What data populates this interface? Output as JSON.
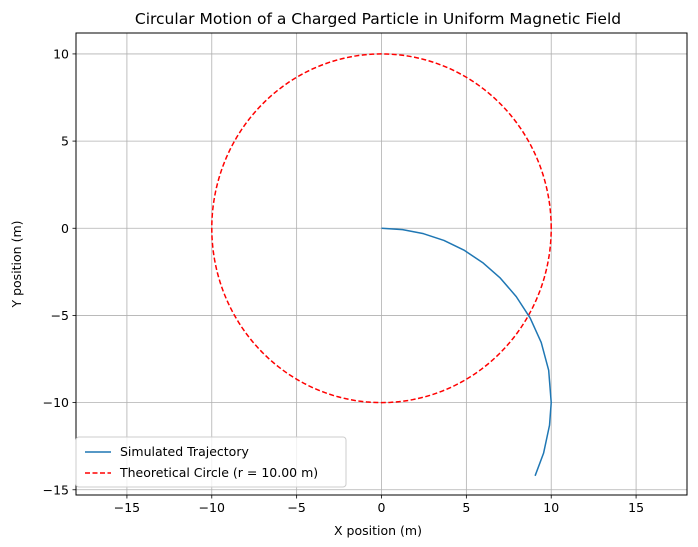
{
  "chart_data": {
    "type": "line",
    "title": "Circular Motion of a Charged Particle in Uniform Magnetic Field",
    "xlabel": "X position (m)",
    "ylabel": "Y position (m)",
    "xlim": [
      -18,
      18
    ],
    "ylim": [
      -15.3,
      11.2
    ],
    "xticks": [
      -15,
      -10,
      -5,
      0,
      5,
      10,
      15
    ],
    "yticks": [
      -15,
      -10,
      -5,
      0,
      5,
      10
    ],
    "xtick_labels": [
      "−15",
      "−10",
      "−5",
      "0",
      "5",
      "10",
      "15"
    ],
    "ytick_labels": [
      "−15",
      "−10",
      "−5",
      "0",
      "5",
      "10"
    ],
    "grid": true,
    "legend_position": "lower-left",
    "series": [
      {
        "name": "Simulated Trajectory",
        "style": "solid",
        "color": "#1f77b4",
        "x": [
          0,
          1.24,
          2.47,
          3.68,
          4.85,
          5.96,
          7.0,
          7.94,
          8.76,
          9.41,
          9.85,
          10.0,
          9.9,
          9.55,
          9.05
        ],
        "y": [
          0,
          -0.08,
          -0.31,
          -0.7,
          -1.25,
          -1.97,
          -2.86,
          -3.92,
          -5.15,
          -6.55,
          -8.15,
          -10.0,
          -11.3,
          -12.9,
          -14.2
        ]
      },
      {
        "name": "Theoretical Circle (r = 10.00 m)",
        "style": "dashed",
        "color": "#ff0000",
        "center": [
          0,
          0
        ],
        "radius": 10.0
      }
    ]
  }
}
